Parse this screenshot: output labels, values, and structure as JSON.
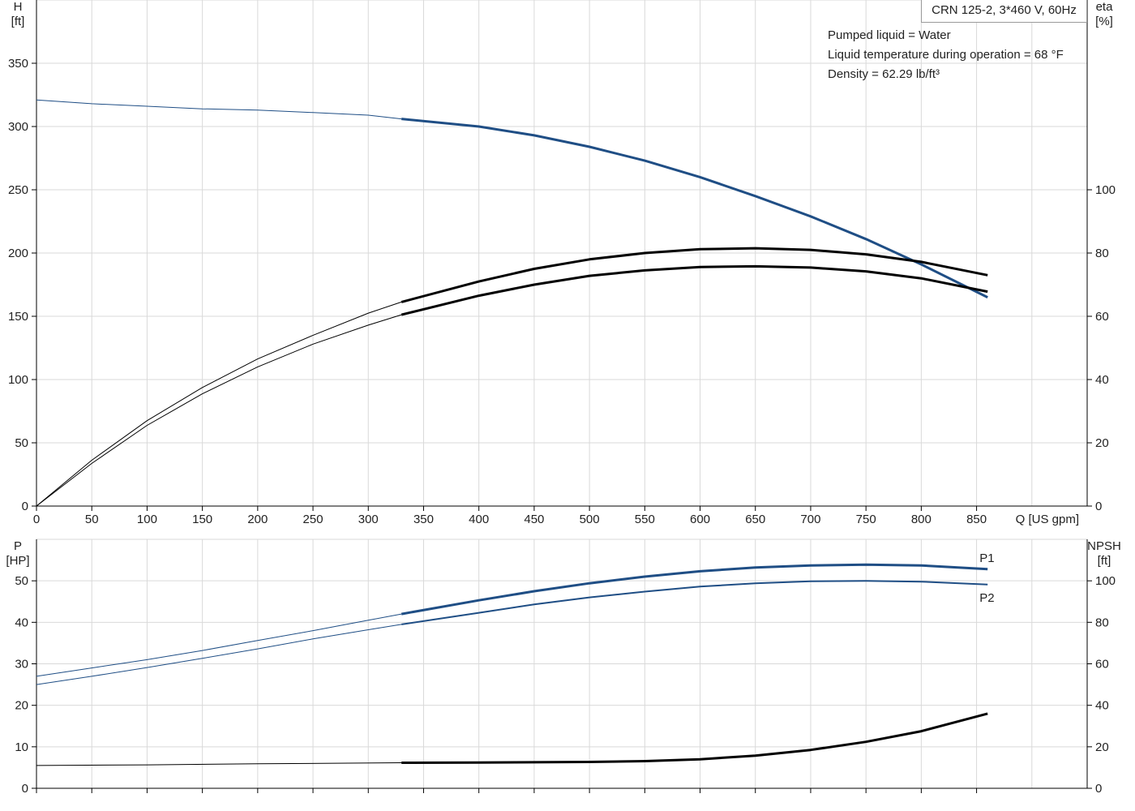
{
  "title": "CRN 125-2, 3*460 V, 60Hz",
  "info_lines": [
    "Pumped liquid = Water",
    "Liquid temperature during operation = 68 °F",
    "Density = 62.29 lb/ft³"
  ],
  "colors": {
    "blue": "#1f4e85",
    "black": "#000000",
    "grid": "#d9d9d9"
  },
  "chart_data": [
    {
      "type": "line",
      "x_axis": {
        "label": "Q [US gpm]",
        "lim": [
          0,
          950
        ],
        "ticks": [
          0,
          50,
          100,
          150,
          200,
          250,
          300,
          350,
          400,
          450,
          500,
          550,
          600,
          650,
          700,
          750,
          800,
          850
        ]
      },
      "y_axis_left": {
        "label_top": "H",
        "label_unit": "[ft]",
        "lim": [
          0,
          400
        ],
        "ticks": [
          0,
          50,
          100,
          150,
          200,
          250,
          300,
          350
        ]
      },
      "y_axis_right": {
        "label_top": "eta",
        "label_unit": "[%]",
        "lim": [
          0,
          160
        ],
        "ticks": [
          0,
          20,
          40,
          60,
          80,
          100
        ]
      },
      "operating_range_start": 330,
      "grid": true,
      "series": [
        {
          "axis": "left",
          "color": "blue",
          "x": [
            0,
            50,
            100,
            150,
            200,
            250,
            300,
            330,
            400,
            450,
            500,
            550,
            600,
            650,
            700,
            750,
            800,
            860
          ],
          "values": [
            321,
            318,
            316,
            314,
            313,
            311,
            309,
            306,
            300,
            293,
            284,
            273,
            260,
            245,
            229,
            211,
            191,
            165
          ]
        },
        {
          "axis": "right",
          "color": "black",
          "x": [
            0,
            50,
            100,
            150,
            200,
            250,
            300,
            330,
            400,
            450,
            500,
            550,
            600,
            650,
            700,
            750,
            800,
            860
          ],
          "values": [
            0,
            14.5,
            27,
            37.5,
            46.5,
            54,
            61,
            64.5,
            71,
            75,
            78,
            80,
            81.2,
            81.5,
            81,
            79.6,
            77.2,
            73
          ]
        },
        {
          "axis": "right",
          "color": "black",
          "x": [
            0,
            50,
            100,
            150,
            200,
            250,
            300,
            330,
            400,
            450,
            500,
            550,
            600,
            650,
            700,
            750,
            800,
            860
          ],
          "values": [
            0,
            13.5,
            25.5,
            35.5,
            44,
            51.2,
            57.2,
            60.5,
            66.5,
            70,
            72.8,
            74.5,
            75.6,
            75.8,
            75.4,
            74.2,
            72,
            67.8
          ]
        }
      ]
    },
    {
      "type": "line",
      "x_axis": {
        "lim": [
          0,
          950
        ]
      },
      "y_axis_left": {
        "label_top": "P",
        "label_unit": "[HP]",
        "lim": [
          0,
          60
        ],
        "ticks": [
          0,
          10,
          20,
          30,
          40,
          50
        ]
      },
      "y_axis_right": {
        "label_top": "NPSH",
        "label_unit": "[ft]",
        "lim": [
          0,
          120
        ],
        "ticks": [
          0,
          20,
          40,
          60,
          80,
          100
        ]
      },
      "operating_range_start": 330,
      "grid": true,
      "series": [
        {
          "name": "P1",
          "axis": "left",
          "color": "blue",
          "x": [
            0,
            50,
            100,
            150,
            200,
            250,
            300,
            330,
            400,
            450,
            500,
            550,
            600,
            650,
            700,
            750,
            800,
            860
          ],
          "values": [
            27,
            29,
            31,
            33.2,
            35.6,
            38,
            40.5,
            42,
            45.3,
            47.5,
            49.4,
            51,
            52.3,
            53.2,
            53.7,
            53.9,
            53.7,
            52.8
          ]
        },
        {
          "name": "P2",
          "axis": "left",
          "color": "blue",
          "x": [
            0,
            50,
            100,
            150,
            200,
            250,
            300,
            330,
            400,
            450,
            500,
            550,
            600,
            650,
            700,
            750,
            800,
            860
          ],
          "values": [
            25,
            27,
            29.1,
            31.3,
            33.6,
            36,
            38.2,
            39.5,
            42.3,
            44.3,
            46,
            47.4,
            48.6,
            49.4,
            49.9,
            50,
            49.8,
            49.1
          ]
        },
        {
          "axis": "right",
          "color": "black",
          "x": [
            0,
            100,
            200,
            330,
            400,
            500,
            550,
            600,
            650,
            700,
            750,
            800,
            860
          ],
          "values": [
            11,
            11.3,
            11.8,
            12.3,
            12.4,
            12.7,
            13.1,
            14,
            15.7,
            18.5,
            22.4,
            27.5,
            36
          ]
        }
      ]
    }
  ]
}
